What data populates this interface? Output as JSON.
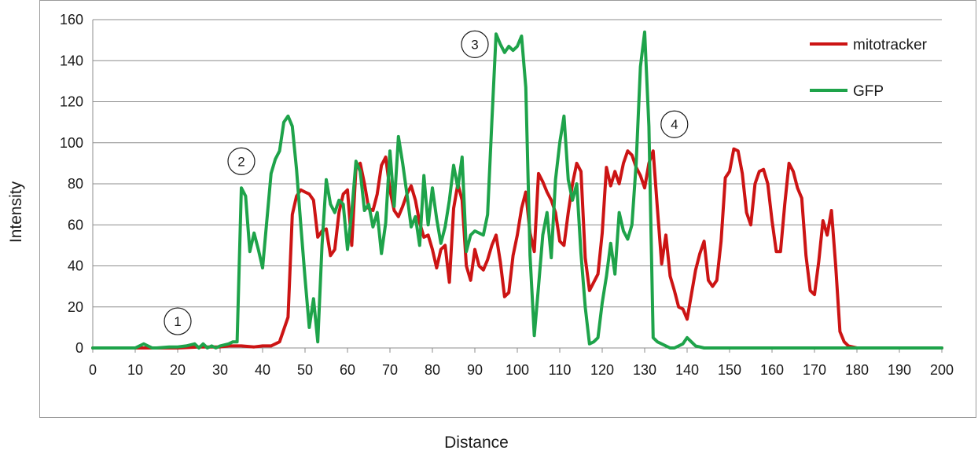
{
  "chart_data": {
    "type": "line",
    "title": "",
    "xlabel": "Distance",
    "ylabel": "Intensity",
    "xlim": [
      0,
      200
    ],
    "ylim": [
      0,
      160
    ],
    "xticks": [
      0,
      10,
      20,
      30,
      40,
      50,
      60,
      70,
      80,
      90,
      100,
      110,
      120,
      130,
      140,
      150,
      160,
      170,
      180,
      190,
      200
    ],
    "yticks": [
      0,
      20,
      40,
      60,
      80,
      100,
      120,
      140,
      160
    ],
    "grid": "horizontal",
    "legend_position": "top-right",
    "series": [
      {
        "name": "mitotracker",
        "color": "#cc1414",
        "points": [
          [
            0,
            0
          ],
          [
            10,
            0
          ],
          [
            15,
            0
          ],
          [
            20,
            0
          ],
          [
            25,
            0.5
          ],
          [
            30,
            0.5
          ],
          [
            32,
            1
          ],
          [
            35,
            1
          ],
          [
            38,
            0.5
          ],
          [
            40,
            1
          ],
          [
            42,
            1
          ],
          [
            44,
            3
          ],
          [
            46,
            15
          ],
          [
            47,
            65
          ],
          [
            48,
            74
          ],
          [
            49,
            77
          ],
          [
            50,
            76
          ],
          [
            51,
            75
          ],
          [
            52,
            72
          ],
          [
            53,
            54
          ],
          [
            54,
            57
          ],
          [
            55,
            58
          ],
          [
            56,
            45
          ],
          [
            57,
            48
          ],
          [
            58,
            66
          ],
          [
            59,
            75
          ],
          [
            60,
            77
          ],
          [
            61,
            50
          ],
          [
            62,
            88
          ],
          [
            63,
            90
          ],
          [
            64,
            80
          ],
          [
            65,
            68
          ],
          [
            66,
            67
          ],
          [
            67,
            75
          ],
          [
            68,
            89
          ],
          [
            69,
            93
          ],
          [
            70,
            77
          ],
          [
            71,
            67
          ],
          [
            72,
            64
          ],
          [
            73,
            69
          ],
          [
            74,
            75
          ],
          [
            75,
            79
          ],
          [
            76,
            72
          ],
          [
            77,
            61
          ],
          [
            78,
            54
          ],
          [
            79,
            55
          ],
          [
            80,
            48
          ],
          [
            81,
            39
          ],
          [
            82,
            48
          ],
          [
            83,
            50
          ],
          [
            84,
            32
          ],
          [
            85,
            68
          ],
          [
            86,
            80
          ],
          [
            87,
            72
          ],
          [
            88,
            40
          ],
          [
            89,
            33
          ],
          [
            90,
            48
          ],
          [
            91,
            40
          ],
          [
            92,
            38
          ],
          [
            93,
            43
          ],
          [
            94,
            50
          ],
          [
            95,
            55
          ],
          [
            96,
            42
          ],
          [
            97,
            25
          ],
          [
            98,
            27
          ],
          [
            99,
            45
          ],
          [
            100,
            55
          ],
          [
            101,
            68
          ],
          [
            102,
            76
          ],
          [
            103,
            56
          ],
          [
            104,
            47
          ],
          [
            105,
            85
          ],
          [
            106,
            81
          ],
          [
            107,
            76
          ],
          [
            108,
            72
          ],
          [
            109,
            66
          ],
          [
            110,
            52
          ],
          [
            111,
            50
          ],
          [
            112,
            66
          ],
          [
            113,
            80
          ],
          [
            114,
            90
          ],
          [
            115,
            86
          ],
          [
            116,
            44
          ],
          [
            117,
            28
          ],
          [
            118,
            32
          ],
          [
            119,
            36
          ],
          [
            120,
            56
          ],
          [
            121,
            88
          ],
          [
            122,
            79
          ],
          [
            123,
            86
          ],
          [
            124,
            80
          ],
          [
            125,
            90
          ],
          [
            126,
            96
          ],
          [
            127,
            94
          ],
          [
            128,
            88
          ],
          [
            129,
            84
          ],
          [
            130,
            78
          ],
          [
            131,
            90
          ],
          [
            132,
            96
          ],
          [
            133,
            68
          ],
          [
            134,
            41
          ],
          [
            135,
            55
          ],
          [
            136,
            35
          ],
          [
            137,
            28
          ],
          [
            138,
            20
          ],
          [
            139,
            19
          ],
          [
            140,
            14
          ],
          [
            141,
            26
          ],
          [
            142,
            38
          ],
          [
            143,
            46
          ],
          [
            144,
            52
          ],
          [
            145,
            33
          ],
          [
            146,
            30
          ],
          [
            147,
            33
          ],
          [
            148,
            52
          ],
          [
            149,
            83
          ],
          [
            150,
            86
          ],
          [
            151,
            97
          ],
          [
            152,
            96
          ],
          [
            153,
            85
          ],
          [
            154,
            66
          ],
          [
            155,
            60
          ],
          [
            156,
            80
          ],
          [
            157,
            86
          ],
          [
            158,
            87
          ],
          [
            159,
            80
          ],
          [
            160,
            62
          ],
          [
            161,
            47
          ],
          [
            162,
            47
          ],
          [
            163,
            70
          ],
          [
            164,
            90
          ],
          [
            165,
            86
          ],
          [
            166,
            78
          ],
          [
            167,
            73
          ],
          [
            168,
            45
          ],
          [
            169,
            28
          ],
          [
            170,
            26
          ],
          [
            171,
            42
          ],
          [
            172,
            62
          ],
          [
            173,
            55
          ],
          [
            174,
            67
          ],
          [
            175,
            40
          ],
          [
            176,
            8
          ],
          [
            177,
            3
          ],
          [
            178,
            1
          ],
          [
            180,
            0
          ],
          [
            190,
            0
          ],
          [
            200,
            0
          ]
        ]
      },
      {
        "name": "GFP",
        "color": "#1ea34a",
        "points": [
          [
            0,
            0
          ],
          [
            10,
            0
          ],
          [
            11,
            1
          ],
          [
            12,
            2
          ],
          [
            13,
            1
          ],
          [
            14,
            0
          ],
          [
            15,
            0
          ],
          [
            18,
            0.5
          ],
          [
            20,
            0.5
          ],
          [
            22,
            1
          ],
          [
            24,
            2
          ],
          [
            25,
            0
          ],
          [
            26,
            2
          ],
          [
            27,
            0
          ],
          [
            28,
            1
          ],
          [
            29,
            0
          ],
          [
            30,
            1
          ],
          [
            32,
            2
          ],
          [
            33,
            3
          ],
          [
            34,
            3
          ],
          [
            35,
            78
          ],
          [
            36,
            74
          ],
          [
            37,
            47
          ],
          [
            38,
            56
          ],
          [
            39,
            48
          ],
          [
            40,
            39
          ],
          [
            41,
            62
          ],
          [
            42,
            85
          ],
          [
            43,
            92
          ],
          [
            44,
            96
          ],
          [
            45,
            110
          ],
          [
            46,
            113
          ],
          [
            47,
            108
          ],
          [
            48,
            87
          ],
          [
            49,
            60
          ],
          [
            50,
            34
          ],
          [
            51,
            10
          ],
          [
            52,
            24
          ],
          [
            53,
            3
          ],
          [
            54,
            50
          ],
          [
            55,
            82
          ],
          [
            56,
            70
          ],
          [
            57,
            66
          ],
          [
            58,
            72
          ],
          [
            59,
            70
          ],
          [
            60,
            48
          ],
          [
            61,
            66
          ],
          [
            62,
            91
          ],
          [
            63,
            86
          ],
          [
            64,
            67
          ],
          [
            65,
            70
          ],
          [
            66,
            59
          ],
          [
            67,
            66
          ],
          [
            68,
            46
          ],
          [
            69,
            61
          ],
          [
            70,
            96
          ],
          [
            71,
            69
          ],
          [
            72,
            103
          ],
          [
            73,
            90
          ],
          [
            74,
            75
          ],
          [
            75,
            59
          ],
          [
            76,
            64
          ],
          [
            77,
            50
          ],
          [
            78,
            84
          ],
          [
            79,
            60
          ],
          [
            80,
            78
          ],
          [
            81,
            63
          ],
          [
            82,
            51
          ],
          [
            83,
            59
          ],
          [
            84,
            72
          ],
          [
            85,
            89
          ],
          [
            86,
            78
          ],
          [
            87,
            93
          ],
          [
            88,
            47
          ],
          [
            89,
            55
          ],
          [
            90,
            57
          ],
          [
            91,
            56
          ],
          [
            92,
            55
          ],
          [
            93,
            65
          ],
          [
            94,
            110
          ],
          [
            95,
            153
          ],
          [
            96,
            148
          ],
          [
            97,
            144
          ],
          [
            98,
            147
          ],
          [
            99,
            145
          ],
          [
            100,
            147
          ],
          [
            101,
            152
          ],
          [
            102,
            127
          ],
          [
            103,
            45
          ],
          [
            104,
            6
          ],
          [
            105,
            30
          ],
          [
            106,
            55
          ],
          [
            107,
            66
          ],
          [
            108,
            44
          ],
          [
            109,
            82
          ],
          [
            110,
            100
          ],
          [
            111,
            113
          ],
          [
            112,
            82
          ],
          [
            113,
            72
          ],
          [
            114,
            80
          ],
          [
            115,
            46
          ],
          [
            116,
            20
          ],
          [
            117,
            2
          ],
          [
            118,
            3
          ],
          [
            119,
            5
          ],
          [
            120,
            22
          ],
          [
            121,
            35
          ],
          [
            122,
            51
          ],
          [
            123,
            36
          ],
          [
            124,
            66
          ],
          [
            125,
            57
          ],
          [
            126,
            53
          ],
          [
            127,
            60
          ],
          [
            128,
            90
          ],
          [
            129,
            137
          ],
          [
            130,
            154
          ],
          [
            131,
            108
          ],
          [
            132,
            5
          ],
          [
            133,
            3
          ],
          [
            134,
            2
          ],
          [
            135,
            1
          ],
          [
            136,
            0
          ],
          [
            137,
            0
          ],
          [
            138,
            1
          ],
          [
            139,
            2
          ],
          [
            140,
            5
          ],
          [
            141,
            3
          ],
          [
            142,
            1
          ],
          [
            144,
            0
          ],
          [
            150,
            0
          ],
          [
            200,
            0
          ]
        ]
      }
    ],
    "annotations": [
      {
        "label": "1",
        "x": 20,
        "y": 13
      },
      {
        "label": "2",
        "x": 35,
        "y": 91
      },
      {
        "label": "3",
        "x": 90,
        "y": 148
      },
      {
        "label": "4",
        "x": 137,
        "y": 109
      }
    ]
  }
}
